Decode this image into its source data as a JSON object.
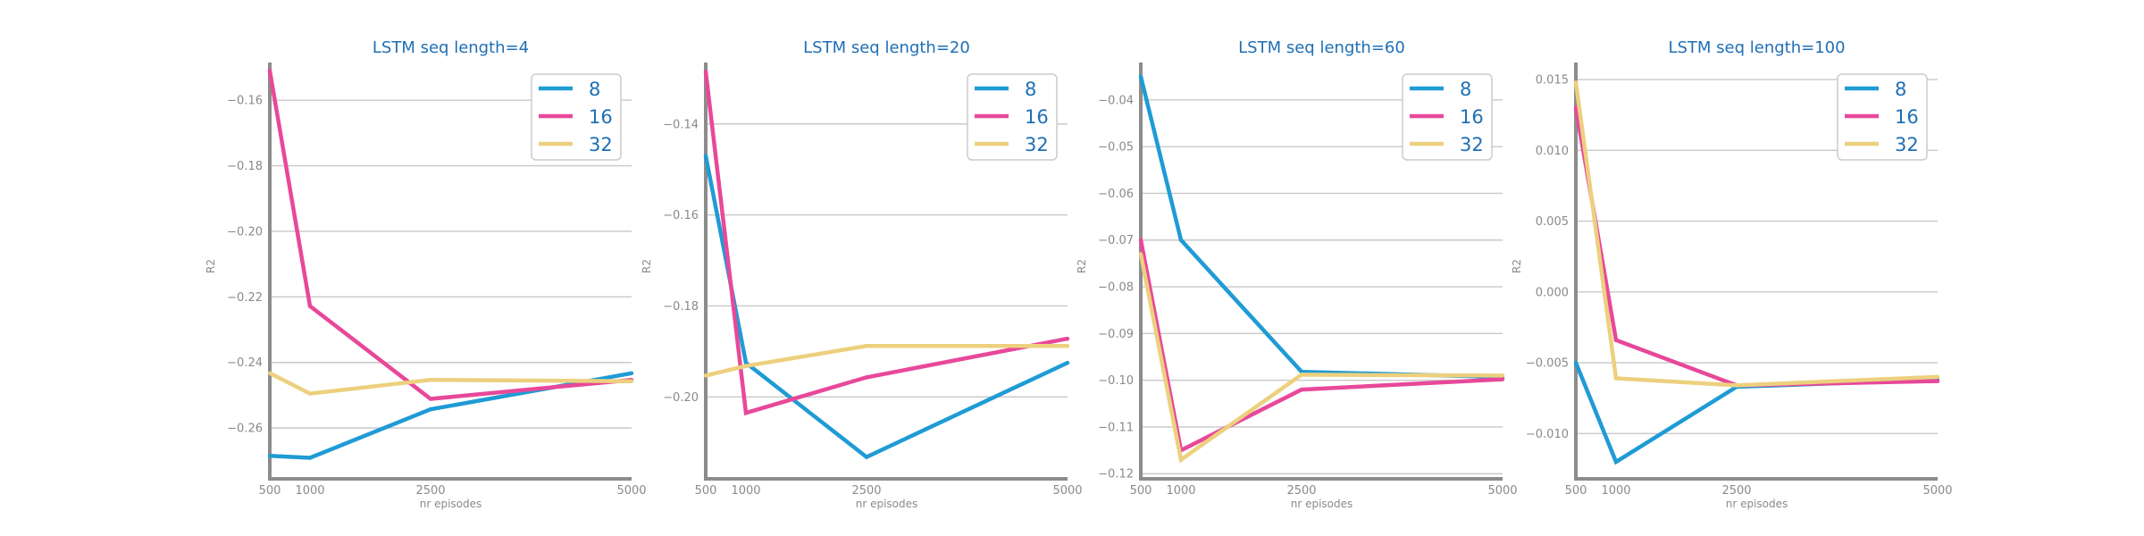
{
  "chart_data": [
    {
      "type": "line",
      "title": "LSTM seq length=4",
      "xlabel": "nr episodes",
      "ylabel": "R2",
      "x": [
        500,
        1000,
        2500,
        5000
      ],
      "xticks": [
        "500",
        "1000",
        "2500",
        "5000"
      ],
      "xlim": [
        500,
        5000
      ],
      "ylim": [
        -0.2755,
        -0.1485
      ],
      "yticks": [
        -0.26,
        -0.24,
        -0.22,
        -0.2,
        -0.18,
        -0.16
      ],
      "ytick_labels": [
        "−0.26",
        "−0.24",
        "−0.22",
        "−0.20",
        "−0.18",
        "−0.16"
      ],
      "grid": "y",
      "legend_position": "top-right",
      "series": [
        {
          "name": "8",
          "color": "#1f9bd5",
          "values": [
            -0.2685,
            -0.2691,
            -0.2543,
            -0.2433
          ]
        },
        {
          "name": "16",
          "color": "#e8489a",
          "values": [
            -0.151,
            -0.2228,
            -0.2511,
            -0.2453
          ]
        },
        {
          "name": "32",
          "color": "#edd07e",
          "values": [
            -0.2433,
            -0.2495,
            -0.2453,
            -0.2457
          ]
        }
      ]
    },
    {
      "type": "line",
      "title": "LSTM seq length=20",
      "xlabel": "nr episodes",
      "ylabel": "R2",
      "x": [
        500,
        1000,
        2500,
        5000
      ],
      "xticks": [
        "500",
        "1000",
        "2500",
        "5000"
      ],
      "xlim": [
        500,
        5000
      ],
      "ylim": [
        -0.218,
        -0.1265
      ],
      "yticks": [
        -0.2,
        -0.18,
        -0.16,
        -0.14
      ],
      "ytick_labels": [
        "−0.20",
        "−0.18",
        "−0.16",
        "−0.14"
      ],
      "grid": "y",
      "legend_position": "top-right",
      "series": [
        {
          "name": "8",
          "color": "#1f9bd5",
          "values": [
            -0.147,
            -0.1925,
            -0.2132,
            -0.1925
          ]
        },
        {
          "name": "16",
          "color": "#e8489a",
          "values": [
            -0.1285,
            -0.2035,
            -0.1957,
            -0.1872
          ]
        },
        {
          "name": "32",
          "color": "#edd07e",
          "values": [
            -0.1953,
            -0.1932,
            -0.1888,
            -0.1888
          ]
        }
      ]
    },
    {
      "type": "line",
      "title": "LSTM seq length=60",
      "xlabel": "nr episodes",
      "ylabel": "R2",
      "x": [
        500,
        1000,
        2500,
        5000
      ],
      "xticks": [
        "500",
        "1000",
        "2500",
        "5000"
      ],
      "xlim": [
        500,
        5000
      ],
      "ylim": [
        -0.1211,
        -0.032
      ],
      "yticks": [
        -0.12,
        -0.11,
        -0.1,
        -0.09,
        -0.08,
        -0.07,
        -0.06,
        -0.05,
        -0.04
      ],
      "ytick_labels": [
        "−0.12",
        "−0.11",
        "−0.10",
        "−0.09",
        "−0.08",
        "−0.07",
        "−0.06",
        "−0.05",
        "−0.04"
      ],
      "grid": "y",
      "legend_position": "top-right",
      "series": [
        {
          "name": "8",
          "color": "#1f9bd5",
          "values": [
            -0.035,
            -0.07,
            -0.0982,
            -0.0993
          ]
        },
        {
          "name": "16",
          "color": "#e8489a",
          "values": [
            -0.07,
            -0.115,
            -0.102,
            -0.0998
          ]
        },
        {
          "name": "32",
          "color": "#edd07e",
          "values": [
            -0.073,
            -0.117,
            -0.0988,
            -0.099
          ]
        }
      ]
    },
    {
      "type": "line",
      "title": "LSTM seq length=100",
      "xlabel": "nr episodes",
      "ylabel": "R2",
      "x": [
        500,
        1000,
        2500,
        5000
      ],
      "xticks": [
        "500",
        "1000",
        "2500",
        "5000"
      ],
      "xlim": [
        500,
        5000
      ],
      "ylim": [
        -0.0132,
        0.0162
      ],
      "yticks": [
        -0.01,
        -0.005,
        0.0,
        0.005,
        0.01,
        0.015
      ],
      "ytick_labels": [
        "−0.010",
        "−0.005",
        "0.000",
        "0.005",
        "0.010",
        "0.015"
      ],
      "grid": "y",
      "legend_position": "top-right",
      "series": [
        {
          "name": "8",
          "color": "#1f9bd5",
          "values": [
            -0.005,
            -0.012,
            -0.0067,
            -0.0062
          ]
        },
        {
          "name": "16",
          "color": "#e8489a",
          "values": [
            0.013,
            -0.0034,
            -0.0066,
            -0.0063
          ]
        },
        {
          "name": "32",
          "color": "#edd07e",
          "values": [
            0.0148,
            -0.0061,
            -0.0066,
            -0.006
          ]
        }
      ]
    }
  ]
}
